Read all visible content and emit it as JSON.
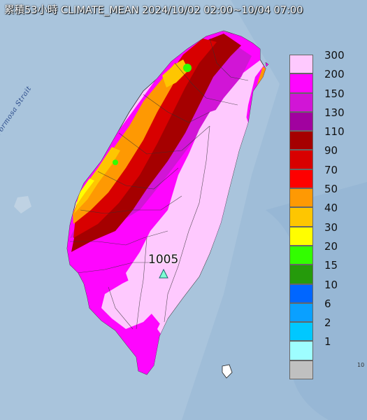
{
  "title": "累積53小時 CLIMATE_MEAN 2024/10/02 02:00~10/04 07:00",
  "sea_label": "Formosa Strait",
  "station": {
    "value": "1005",
    "marker_icon": "triangle-station-icon",
    "marker_color": "#7fffd4"
  },
  "corner_mark": "10",
  "legend": [
    {
      "label": "300",
      "color": "#fec9fe"
    },
    {
      "label": "200",
      "color": "#fe06fe"
    },
    {
      "label": "150",
      "color": "#d115d6"
    },
    {
      "label": "130",
      "color": "#a1029f"
    },
    {
      "label": "110",
      "color": "#a50000"
    },
    {
      "label": "90",
      "color": "#d80000"
    },
    {
      "label": "70",
      "color": "#fe0000"
    },
    {
      "label": "50",
      "color": "#fe9903"
    },
    {
      "label": "40",
      "color": "#fec601"
    },
    {
      "label": "30",
      "color": "#fffe00"
    },
    {
      "label": "20",
      "color": "#32fe00"
    },
    {
      "label": "15",
      "color": "#259a0b"
    },
    {
      "label": "10",
      "color": "#0066ff"
    },
    {
      "label": "6",
      "color": "#0aa0ff"
    },
    {
      "label": "2",
      "color": "#00c8ff"
    },
    {
      "label": "1",
      "color": "#9efeff"
    },
    {
      "label": "",
      "color": "#c0c0c0"
    }
  ],
  "colors": {
    "sea": "#a9c4dc",
    "land_base": "#fec9fe"
  }
}
